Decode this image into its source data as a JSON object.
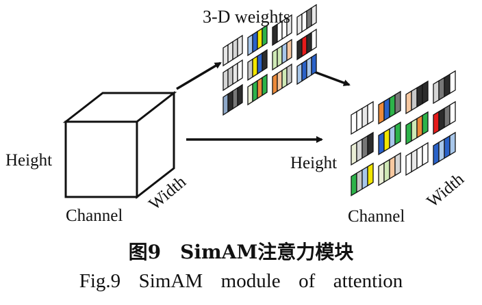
{
  "diagram": {
    "labels": {
      "weights_title": "3-D  weights",
      "input_height": "Height",
      "input_channel": "Channel",
      "input_width": "Width",
      "output_height": "Height",
      "output_channel": "Channel",
      "output_width": "Width"
    },
    "colors": {
      "line": "#111111",
      "cells": [
        "#e8e8e8",
        "#d6d6d6",
        "#c8c8c8",
        "#ffffff",
        "#f2e600",
        "#2a62c9",
        "#2db34a",
        "#ec8a3a",
        "#e51b1b",
        "#f7c8a0",
        "#cfe9b6",
        "#a8c7ea",
        "#777777",
        "#2c2c2c",
        "#8fa9c9",
        "#eaeed6"
      ]
    },
    "weight_strips": [
      [
        "c0",
        "c0",
        "c1",
        "c0"
      ],
      [
        "c1",
        "c2",
        "c0",
        "c3"
      ],
      [
        "c14",
        "c13",
        "c12",
        "c13"
      ],
      [
        "c11",
        "c5",
        "c4",
        "c6"
      ],
      [
        "c2",
        "c4",
        "c5",
        "c13"
      ],
      [
        "c15",
        "c6",
        "c7",
        "c6"
      ],
      [
        "c13",
        "c3",
        "c3",
        "c0"
      ],
      [
        "c10",
        "c10",
        "c11",
        "c9"
      ],
      [
        "c7",
        "c9",
        "c10",
        "c2"
      ],
      [
        "c0",
        "c3",
        "c12",
        "c0"
      ],
      [
        "c13",
        "c8",
        "c13",
        "c3"
      ],
      [
        "c11",
        "c5",
        "c11",
        "c5"
      ]
    ],
    "output_strips": [
      [
        "c3",
        "c3",
        "c0",
        "c3"
      ],
      [
        "c15",
        "c1",
        "c12",
        "c13"
      ],
      [
        "c6",
        "c2",
        "c11",
        "c4"
      ],
      [
        "c7",
        "c5",
        "c6",
        "c12"
      ],
      [
        "c5",
        "c4",
        "c11",
        "c6"
      ],
      [
        "c15",
        "c10",
        "c9",
        "c1"
      ],
      [
        "c9",
        "c2",
        "c13",
        "c13"
      ],
      [
        "c6",
        "c10",
        "c7",
        "c6"
      ],
      [
        "c3",
        "c0",
        "c3",
        "c3"
      ],
      [
        "c1",
        "c12",
        "c13",
        "c3"
      ],
      [
        "c8",
        "c13",
        "c12",
        "c3"
      ],
      [
        "c5",
        "c11",
        "c5",
        "c11"
      ]
    ]
  },
  "caption": {
    "cn": "图9　SimAM注意力模块",
    "en": "Fig.9  SimAM  module  of  attention"
  }
}
